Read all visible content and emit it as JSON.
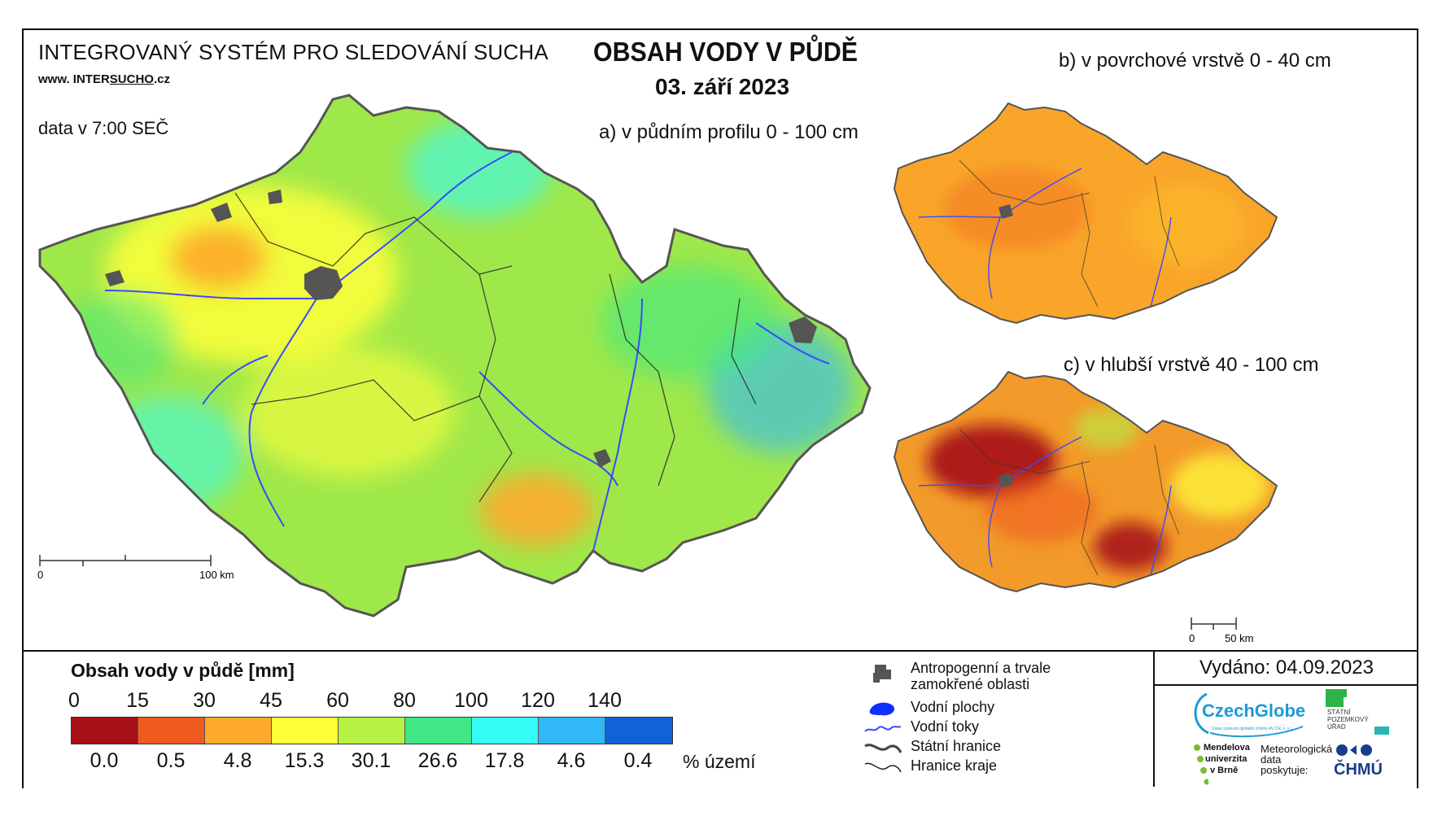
{
  "header": {
    "system_name": "INTEGROVANÝ SYSTÉM PRO SLEDOVÁNÍ SUCHA",
    "website_prefix": "www. INTER",
    "website_brand": "SUCHO",
    "website_suffix": ".cz",
    "data_time": "data v 7:00 SEČ",
    "title": "OBSAH VODY V PŮDĚ",
    "date": "03. září 2023"
  },
  "maps": {
    "main_label": "a) v půdním profilu 0 - 100 cm",
    "surface_label": "b) v povrchové vrstvě 0 - 40 cm",
    "deep_label": "c) v hlubší vrstvě 40 - 100 cm",
    "main_scale_start": "0",
    "main_scale_end": "100 km",
    "small_scale_start": "0",
    "small_scale_end": "50 km"
  },
  "legend": {
    "title": "Obsah vody v půdě  [mm]",
    "class_bounds": [
      "0",
      "15",
      "30",
      "45",
      "60",
      "80",
      "100",
      "120",
      "140"
    ],
    "class_colors": [
      "#a50f15",
      "#ef5a1e",
      "#fdaa2b",
      "#ffff3a",
      "#b6f244",
      "#3fe884",
      "#36fcf6",
      "#32b8f7",
      "#1063d6"
    ],
    "percent_area": [
      "0.0",
      "0.5",
      "4.8",
      "15.3",
      "30.1",
      "26.6",
      "17.8",
      "4.6",
      "0.4"
    ],
    "percent_unit": "% území",
    "symbols": {
      "urban": "Antropogenní a trvale zamokřené oblasti",
      "water_bodies": "Vodní plochy",
      "rivers": "Vodní toky",
      "state_border": "Státní hranice",
      "region_border": "Hranice kraje"
    }
  },
  "footer": {
    "issued": "Vydáno: 04.09.2023",
    "logo_czechglobe": "CzechGlobe",
    "logo_czechglobe_sub": "Ústav výzkumu globální změny AV ČR, v. v. i.",
    "logo_spu": "STÁTNÍ POZEMKOVÝ ÚŘAD",
    "logo_mendelu_1": "Mendelova",
    "logo_mendelu_2": "univerzita",
    "logo_mendelu_3": "v Brně",
    "meteo_1": "Meteorologická",
    "meteo_2": "data",
    "meteo_3": "poskytuje:",
    "logo_chmu": "ČHMÚ"
  },
  "map_colors": {
    "main_fill": "#9fe84a",
    "surface_fill": "#f9a52a",
    "deep_fill": "#f29a2a",
    "rivers": "#3a4bff",
    "urban": "#555555"
  }
}
